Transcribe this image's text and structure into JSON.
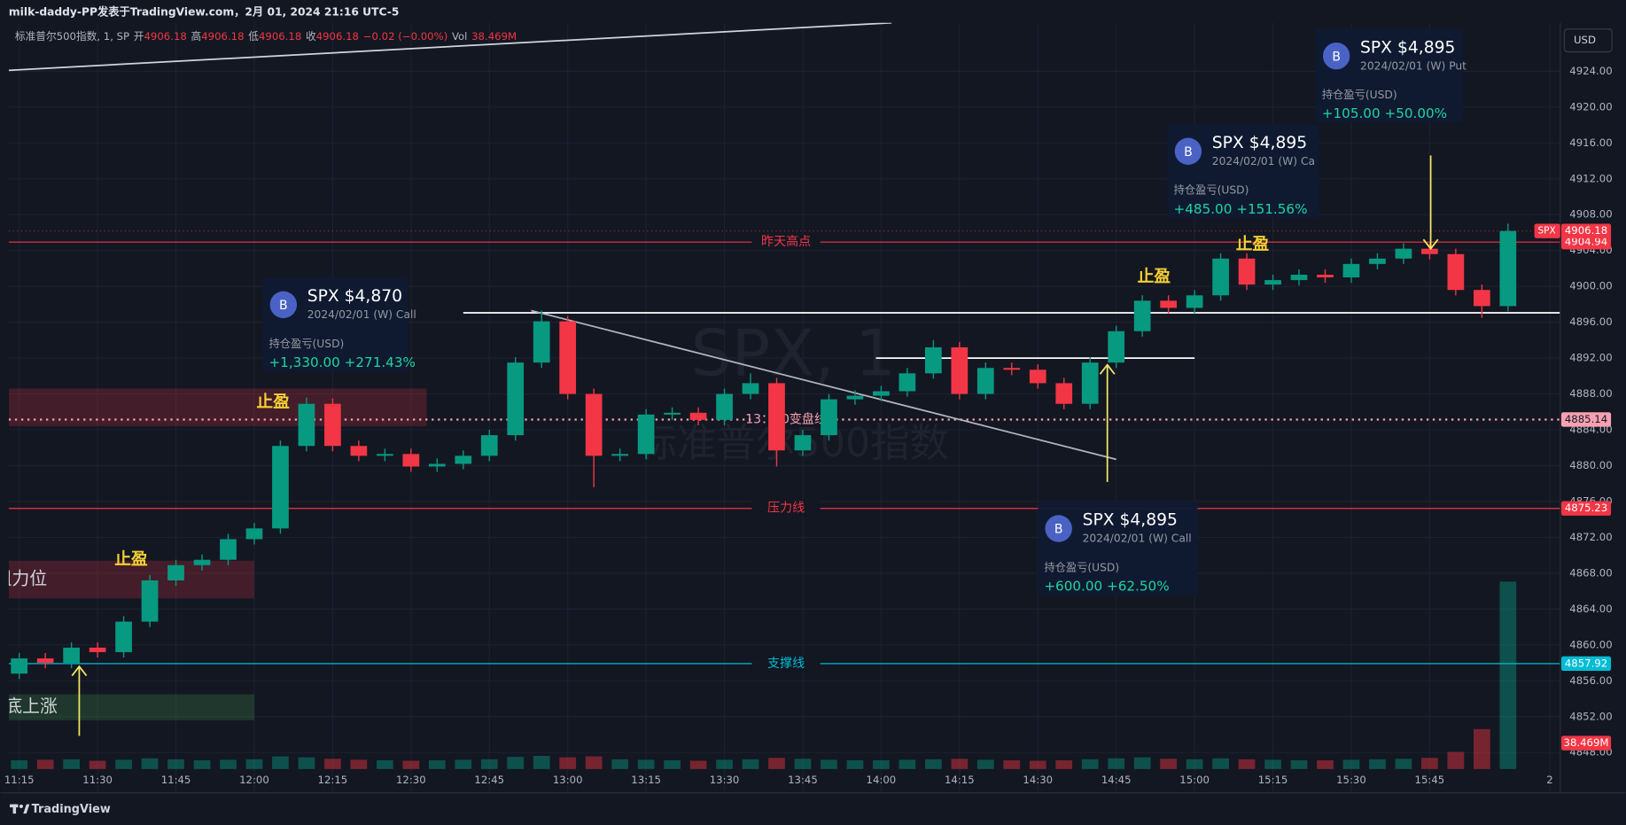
{
  "header": {
    "title": "milk-daddy-PP发表于TradingView.com，2月 01, 2024 21:16 UTC-5",
    "legend": [
      "标准普尔500指数, 1, SP",
      "开",
      "4906.18",
      "高",
      "4906.18",
      "低",
      "4906.18",
      "收",
      "4906.18",
      "−0.02 (−0.00%)",
      "Vol",
      "38.469M"
    ],
    "currency": "USD"
  },
  "footer": {
    "brand": "TradingView"
  },
  "chart_data": {
    "type": "candlestick",
    "watermark": [
      "SPX, 1",
      "标准普尔500指数"
    ],
    "x": [
      "11:10",
      "11:15",
      "11:20",
      "11:25",
      "11:30",
      "11:35",
      "11:40",
      "11:45",
      "11:50",
      "11:55",
      "12:00",
      "12:05",
      "12:10",
      "12:15",
      "12:20",
      "12:25",
      "12:30",
      "12:35",
      "12:40",
      "12:45",
      "12:50",
      "12:55",
      "13:00",
      "13:05",
      "13:10",
      "13:15",
      "13:20",
      "13:25",
      "13:30",
      "13:35",
      "13:40",
      "13:45",
      "13:50",
      "13:55",
      "14:00",
      "14:05",
      "14:10",
      "14:15",
      "14:20",
      "14:25",
      "14:30",
      "14:35",
      "14:40",
      "14:45",
      "14:50",
      "14:55",
      "15:00",
      "15:05",
      "15:10",
      "15:15",
      "15:20",
      "15:25",
      "15:30",
      "15:35",
      "15:40",
      "15:45",
      "15:50",
      "15:55",
      "16:00"
    ],
    "open": [
      4856.2,
      4856.8,
      4858.5,
      4858.0,
      4859.7,
      4859.2,
      4862.6,
      4867.2,
      4868.9,
      4869.5,
      4871.8,
      4873.0,
      4882.2,
      4886.9,
      4882.2,
      4881.1,
      4881.3,
      4879.9,
      4880.2,
      4881.1,
      4883.4,
      4891.5,
      4896.1,
      4888.0,
      4881.1,
      4881.3,
      4885.7,
      4885.9,
      4885.1,
      4888.0,
      4889.2,
      4881.7,
      4883.4,
      4887.4,
      4887.8,
      4888.3,
      4890.3,
      4893.2,
      4888.0,
      4890.9,
      4890.7,
      4889.2,
      4886.9,
      4891.5,
      4895.0,
      4898.4,
      4897.6,
      4899.0,
      4903.1,
      4900.2,
      4900.7,
      4901.3,
      4901.0,
      4902.5,
      4903.1,
      4904.2,
      4903.6,
      4899.6,
      4897.8
    ],
    "high": [
      4857.4,
      4859.1,
      4859.1,
      4860.3,
      4860.3,
      4863.2,
      4867.8,
      4869.5,
      4870.1,
      4872.4,
      4873.6,
      4882.8,
      4887.6,
      4887.5,
      4882.8,
      4881.9,
      4881.9,
      4880.8,
      4881.7,
      4884.0,
      4892.1,
      4897.3,
      4896.7,
      4888.6,
      4881.9,
      4886.3,
      4886.5,
      4886.5,
      4888.6,
      4890.3,
      4889.8,
      4884.0,
      4888.0,
      4888.4,
      4888.9,
      4890.9,
      4894.0,
      4893.8,
      4891.5,
      4891.5,
      4891.3,
      4889.8,
      4892.1,
      4895.6,
      4899.0,
      4899.0,
      4899.6,
      4903.7,
      4903.7,
      4901.3,
      4901.9,
      4901.9,
      4903.1,
      4903.7,
      4904.8,
      4904.8,
      4904.2,
      4900.2,
      4907.0
    ],
    "low": [
      4855.6,
      4856.2,
      4857.4,
      4857.4,
      4858.6,
      4858.6,
      4862.0,
      4866.6,
      4868.3,
      4868.9,
      4871.2,
      4872.4,
      4881.6,
      4881.6,
      4880.5,
      4880.5,
      4879.3,
      4879.3,
      4879.6,
      4880.5,
      4882.8,
      4890.9,
      4887.4,
      4877.6,
      4880.5,
      4880.7,
      4885.1,
      4884.5,
      4884.5,
      4887.4,
      4879.9,
      4881.1,
      4882.8,
      4886.8,
      4887.2,
      4887.7,
      4889.7,
      4887.4,
      4887.4,
      4890.1,
      4888.6,
      4886.3,
      4886.3,
      4890.9,
      4894.4,
      4897.0,
      4897.0,
      4898.4,
      4899.6,
      4899.6,
      4900.1,
      4900.4,
      4900.4,
      4901.9,
      4902.5,
      4903.0,
      4899.0,
      4896.5,
      4897.2
    ],
    "close": [
      4856.8,
      4858.5,
      4858.0,
      4859.7,
      4859.2,
      4862.6,
      4867.2,
      4868.9,
      4869.5,
      4871.8,
      4873.0,
      4882.2,
      4886.9,
      4882.2,
      4881.1,
      4881.3,
      4879.9,
      4880.2,
      4881.1,
      4883.4,
      4891.5,
      4896.1,
      4888.0,
      4881.1,
      4881.3,
      4885.7,
      4885.9,
      4885.1,
      4888.0,
      4889.2,
      4881.7,
      4883.4,
      4887.4,
      4887.8,
      4888.3,
      4890.3,
      4893.2,
      4888.0,
      4890.9,
      4890.7,
      4889.2,
      4886.9,
      4891.5,
      4895.0,
      4898.4,
      4897.6,
      4899.0,
      4903.1,
      4900.2,
      4900.7,
      4901.3,
      4901.0,
      4902.5,
      4903.1,
      4904.2,
      4903.6,
      4899.6,
      4897.8,
      4906.18
    ],
    "volume": [
      2.1,
      1.8,
      1.9,
      2.0,
      1.7,
      1.9,
      2.2,
      2.0,
      1.8,
      1.9,
      2.0,
      2.6,
      2.4,
      2.1,
      1.9,
      1.8,
      1.7,
      1.8,
      1.9,
      2.0,
      2.5,
      2.7,
      2.4,
      2.6,
      2.0,
      1.9,
      1.8,
      1.7,
      1.9,
      2.0,
      2.3,
      2.1,
      1.9,
      1.8,
      1.8,
      1.9,
      2.0,
      2.1,
      1.9,
      1.8,
      1.7,
      1.8,
      2.0,
      2.2,
      2.4,
      2.1,
      2.0,
      2.2,
      2.0,
      1.9,
      1.8,
      1.8,
      1.9,
      2.0,
      2.1,
      2.3,
      3.5,
      8.2,
      38.469
    ],
    "volume_badge": "38.469M",
    "up_color": "#089981",
    "down_color": "#f23645",
    "xlim": [
      "11:13",
      "16:10"
    ],
    "xticks": [
      "11:15",
      "11:30",
      "11:45",
      "12:00",
      "12:15",
      "12:30",
      "12:45",
      "13:00",
      "13:15",
      "13:30",
      "13:45",
      "14:00",
      "14:15",
      "14:30",
      "14:45",
      "15:00",
      "15:15",
      "15:30",
      "15:45",
      {
        "value": "16:08",
        "label": "2"
      }
    ],
    "ylim": [
      4843.5,
      4929.4
    ],
    "yticks": [
      {
        "value": 4848,
        "label": "4848.00"
      },
      {
        "value": 4852,
        "label": "4852.00"
      },
      {
        "value": 4856,
        "label": "4856.00"
      },
      {
        "value": 4860,
        "label": "4860.00"
      },
      {
        "value": 4864,
        "label": "4864.00"
      },
      {
        "value": 4868,
        "label": "4868.00"
      },
      {
        "value": 4872,
        "label": "4872.00"
      },
      {
        "value": 4876,
        "label": "4876.00"
      },
      {
        "value": 4880,
        "label": "4880.00"
      },
      {
        "value": 4884,
        "label": "4884.00"
      },
      {
        "value": 4888,
        "label": "4888.00"
      },
      {
        "value": 4892,
        "label": "4892.00"
      },
      {
        "value": 4896,
        "label": "4896.00"
      },
      {
        "value": 4900,
        "label": "4900.00"
      },
      {
        "value": 4904,
        "label": "4904.00"
      },
      {
        "value": 4908,
        "label": "4908.00"
      },
      {
        "value": 4912,
        "label": "4912.00"
      },
      {
        "value": 4916,
        "label": "4916.00"
      },
      {
        "value": 4920,
        "label": "4920.00"
      },
      {
        "value": 4924,
        "label": "4924.00"
      }
    ],
    "grid": true,
    "levels": [
      {
        "value": 4904.94,
        "label": "昨天高点",
        "color": "#f23645",
        "style": "solid"
      },
      {
        "value": 4885.14,
        "label": "13：30变盘线",
        "color": "#f7a1b2",
        "style": "dotted"
      },
      {
        "value": 4875.23,
        "label": "压力线",
        "color": "#f23645",
        "style": "solid"
      },
      {
        "value": 4857.92,
        "label": "支撑线",
        "color": "#00bcd4",
        "style": "solid"
      }
    ],
    "current": {
      "value": 4906.18,
      "tag": "SPX",
      "color": "#f23645"
    },
    "trendlines": [
      {
        "points": [
          [
            "11:13",
            4924.1
          ],
          [
            "14:02",
            4929.4
          ]
        ],
        "color": "#d1d4dc"
      },
      {
        "points": [
          [
            "12:40",
            4897.05
          ],
          [
            "16:10",
            4897.05
          ]
        ],
        "color": "#ffffff"
      },
      {
        "points": [
          [
            "13:59",
            4892.0
          ],
          [
            "15:00",
            4892.0
          ]
        ],
        "color": "#ffffff"
      },
      {
        "points": [
          [
            "12:53",
            4897.3
          ],
          [
            "14:45",
            4880.7
          ]
        ],
        "color": "#b2b5be"
      }
    ],
    "zones": [
      {
        "from": "11:13",
        "to": "12:33",
        "top": 4888.6,
        "bottom": 4884.4,
        "color": "#f23645"
      },
      {
        "from": "11:13",
        "to": "12:00",
        "top": 4869.4,
        "bottom": 4865.2,
        "color": "#f23645",
        "label": "阻力位"
      },
      {
        "from": "11:13",
        "to": "12:00",
        "top": 4854.5,
        "bottom": 4851.6,
        "color": "#4caf50",
        "label": "底上涨"
      }
    ],
    "annotations": [
      "止盈",
      "止盈",
      "止盈",
      "止盈"
    ],
    "cards": [
      {
        "badge": "B",
        "title": "SPX $4,870",
        "subtitle": "2024/02/01 (W) Call",
        "pnl_label": "持仓盈亏(USD)",
        "pnl": "+1,330.00 +271.43%"
      },
      {
        "badge": "B",
        "title": "SPX $4,895",
        "subtitle": "2024/02/01 (W) Call",
        "pnl_label": "持仓盈亏(USD)",
        "pnl": "+600.00 +62.50%"
      },
      {
        "badge": "B",
        "title": "SPX $4,895",
        "subtitle": "2024/02/01 (W) Ca",
        "pnl_label": "持仓盈亏(USD)",
        "pnl": "+485.00 +151.56%"
      },
      {
        "badge": "B",
        "title": "SPX $4,895",
        "subtitle": "2024/02/01 (W) Put",
        "pnl_label": "持仓盈亏(USD)",
        "pnl": "+105.00 +50.00%"
      }
    ]
  }
}
